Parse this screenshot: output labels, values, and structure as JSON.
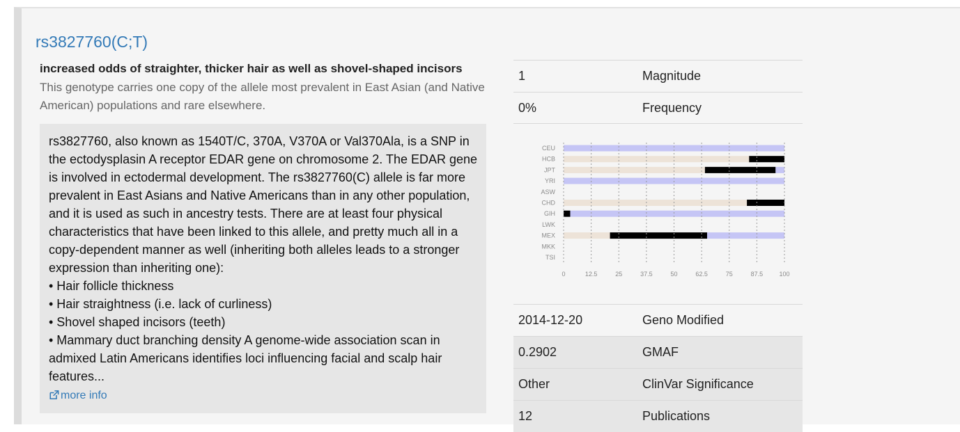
{
  "snp": {
    "title": "rs3827760(C;T)",
    "summary": "increased odds of straighter, thicker hair as well as shovel-shaped incisors",
    "subtext": "This genotype carries one copy of the allele most prevalent in East Asian (and Native American) populations and rare elsewhere."
  },
  "description": {
    "paragraph": "rs3827760, also known as 1540T/C, 370A, V370A or Val370Ala, is a SNP in the ectodysplasin A receptor EDAR gene on chromosome 2. The EDAR gene is involved in ectodermal development. The rs3827760(C) allele is far more prevalent in East Asians and Native Americans than in any other population, and it is used as such in ancestry tests. There are at least four physical characteristics that have been linked to this allele, and pretty much all in a copy-dependent manner as well (inheriting both alleles leads to a stronger expression than inheriting one):",
    "bullets": [
      "• Hair follicle thickness",
      "• Hair straightness (i.e. lack of curliness)",
      "• Shovel shaped incisors (teeth)",
      "• Mammary duct branching density A genome-wide association scan in admixed Latin Americans identifies loci influencing facial and scalp hair features..."
    ],
    "more_info_label": "more info"
  },
  "info_top": [
    {
      "value": "1",
      "key": "Magnitude"
    },
    {
      "value": "0%",
      "key": "Frequency"
    }
  ],
  "info_bottom": [
    {
      "value": "2014-12-20",
      "key": "Geno Modified"
    },
    {
      "value": "0.2902",
      "key": "GMAF"
    },
    {
      "value": "Other",
      "key": "ClinVar Significance"
    },
    {
      "value": "12",
      "key": "Publications"
    }
  ],
  "colors": {
    "link": "#337ab7",
    "cc": "#c5c5f5",
    "ct": "#000000",
    "tt": "#ede3d8"
  },
  "chart_data": {
    "type": "bar",
    "stacked": true,
    "orientation": "horizontal",
    "categories": [
      "CEU",
      "HCB",
      "JPT",
      "YRI",
      "ASW",
      "CHD",
      "GIH",
      "LWK",
      "MEX",
      "MKK",
      "TSI"
    ],
    "x_ticks": [
      "0",
      "12.5",
      "25",
      "37.5",
      "50",
      "62.5",
      "75",
      "87.5",
      "100"
    ],
    "xlim": [
      0,
      100
    ],
    "grid": true,
    "series": [
      {
        "color": "#ede3d8",
        "values": [
          0,
          84,
          64,
          0,
          null,
          83,
          0,
          null,
          21,
          null,
          null
        ]
      },
      {
        "color": "#000000",
        "values": [
          0,
          16,
          32,
          0,
          null,
          17,
          3,
          null,
          44,
          null,
          null
        ]
      },
      {
        "color": "#c5c5f5",
        "values": [
          100,
          0,
          4,
          100,
          null,
          0,
          97,
          null,
          35,
          null,
          null
        ]
      }
    ]
  }
}
